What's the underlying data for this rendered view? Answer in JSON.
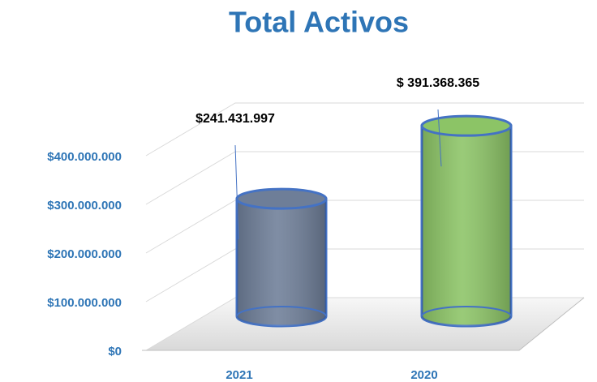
{
  "chart_data": {
    "type": "cylinder",
    "title": "Total Activos",
    "categories": [
      "2021",
      "2020"
    ],
    "values": [
      241431997,
      391368365
    ],
    "value_labels": [
      "$241.431.997",
      "$ 391.368.365"
    ],
    "colors": [
      "#6e7e98",
      "#8cc466"
    ],
    "edge_color": "#4472c4",
    "ylim": [
      0,
      400000000
    ],
    "yticks": [
      {
        "value": 0,
        "label": "$0"
      },
      {
        "value": 100000000,
        "label": "$100.000.000"
      },
      {
        "value": 200000000,
        "label": "$200.000.000"
      },
      {
        "value": 300000000,
        "label": "$300.000.000"
      },
      {
        "value": 400000000,
        "label": "$400.000.000"
      }
    ],
    "grid": true
  }
}
